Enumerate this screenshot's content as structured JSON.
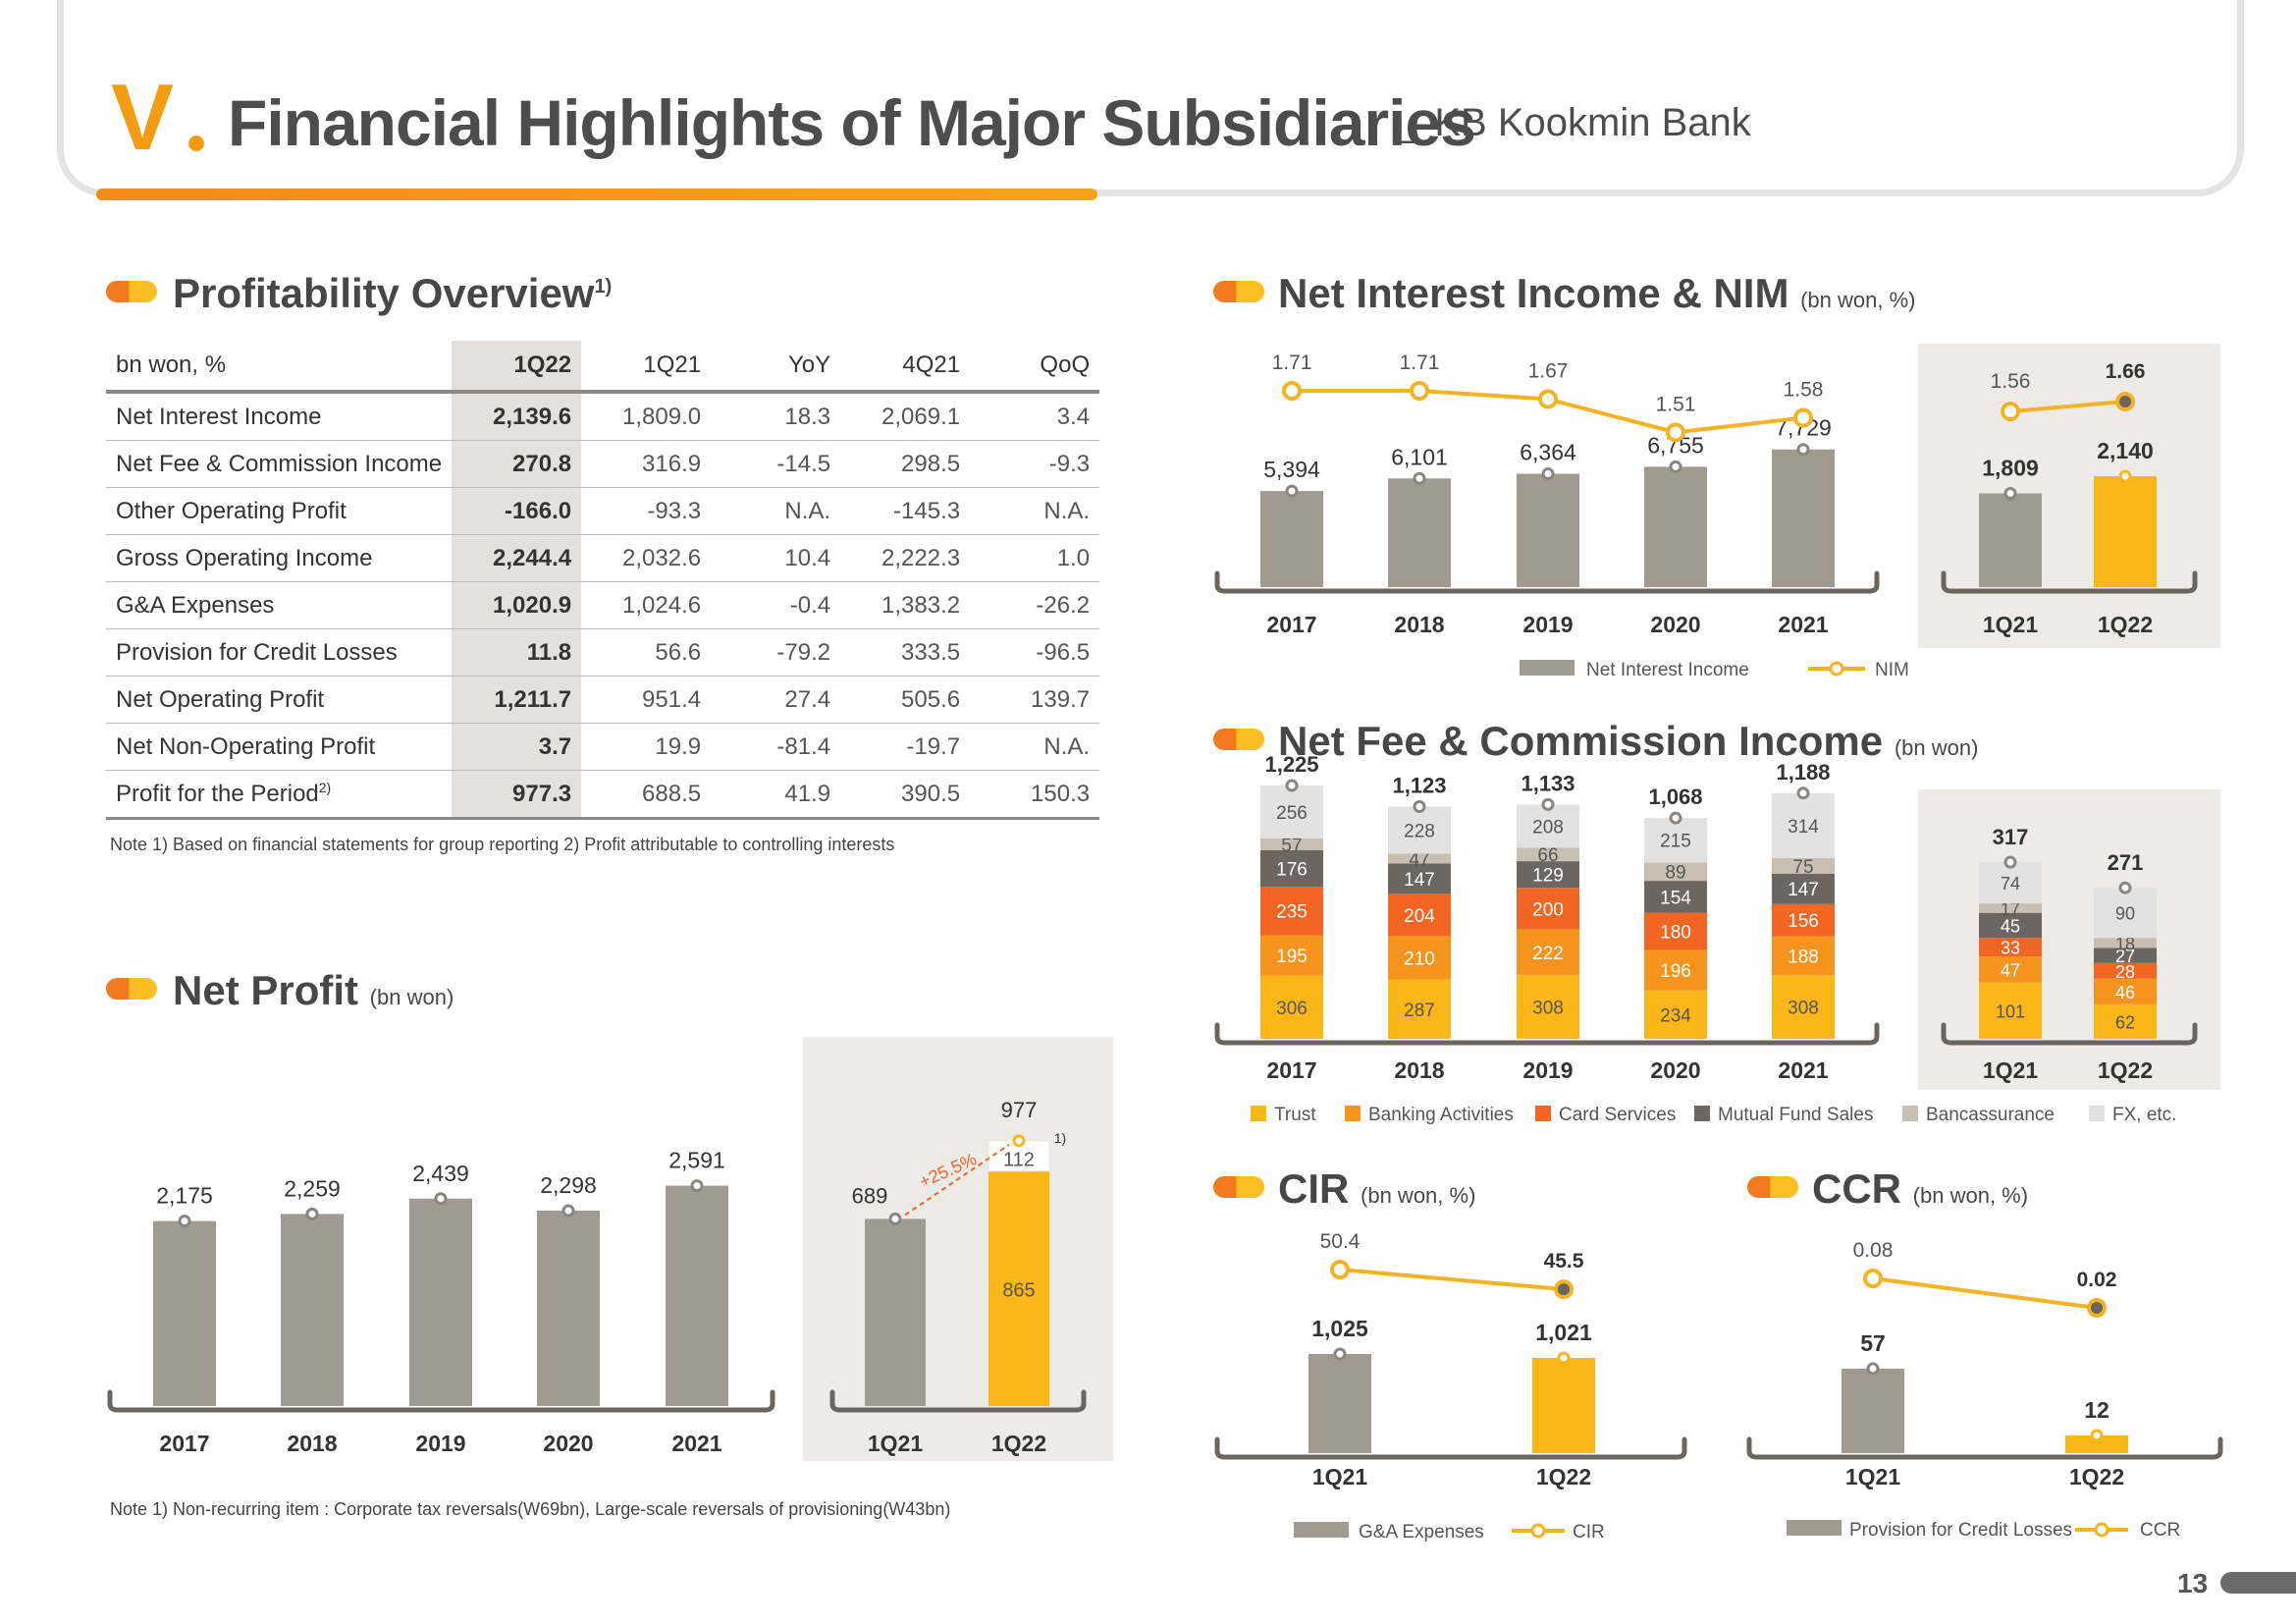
{
  "header": {
    "roman": "V",
    "title": "Financial Highlights of Major Subsidiaries",
    "subtitle": "_ KB Kookmin Bank"
  },
  "page_number": "13",
  "colors": {
    "accent_orange": "#f39c12",
    "bar_gray": "#a09a91",
    "bar_yellow": "#fbb718",
    "line_yellow": "#f5b323"
  },
  "sections": {
    "profitability": {
      "title": "Profitability Overview",
      "sup": "1)"
    },
    "net_profit": {
      "title": "Net Profit",
      "unit": "(bn won)"
    },
    "nii": {
      "title": "Net Interest Income & NIM",
      "unit": "(bn won, %)"
    },
    "fee": {
      "title": "Net Fee & Commission Income",
      "unit": "(bn won)"
    },
    "cir": {
      "title": "CIR",
      "unit": "(bn won, %)"
    },
    "ccr": {
      "title": "CCR",
      "unit": "(bn won, %)"
    }
  },
  "profitability_table": {
    "headers": [
      "bn won, %",
      "1Q22",
      "1Q21",
      "YoY",
      "4Q21",
      "QoQ"
    ],
    "rows": [
      [
        "Net Interest Income",
        "2,139.6",
        "1,809.0",
        "18.3",
        "2,069.1",
        "3.4"
      ],
      [
        "Net Fee & Commission Income",
        "270.8",
        "316.9",
        "-14.5",
        "298.5",
        "-9.3"
      ],
      [
        "Other Operating Profit",
        "-166.0",
        "-93.3",
        "N.A.",
        "-145.3",
        "N.A."
      ],
      [
        "Gross Operating Income",
        "2,244.4",
        "2,032.6",
        "10.4",
        "2,222.3",
        "1.0"
      ],
      [
        "G&A Expenses",
        "1,020.9",
        "1,024.6",
        "-0.4",
        "1,383.2",
        "-26.2"
      ],
      [
        "Provision for Credit Losses",
        "11.8",
        "56.6",
        "-79.2",
        "333.5",
        "-96.5"
      ],
      [
        "Net Operating Profit",
        "1,211.7",
        "951.4",
        "27.4",
        "505.6",
        "139.7"
      ],
      [
        "Net Non-Operating Profit",
        "3.7",
        "19.9",
        "-81.4",
        "-19.7",
        "N.A."
      ],
      [
        "Profit for the Period",
        "977.3",
        "688.5",
        "41.9",
        "390.5",
        "150.3"
      ]
    ],
    "last_row_sup": "2)",
    "note": "Note 1) Based on financial statements for group reporting  2) Profit attributable to controlling interests"
  },
  "net_profit_note": "Note 1) Non-recurring item : Corporate tax reversals(W69bn), Large-scale reversals of provisioning(W43bn)",
  "chart_data": [
    {
      "id": "net_profit_annual",
      "type": "bar",
      "categories": [
        "2017",
        "2018",
        "2019",
        "2020",
        "2021"
      ],
      "values": [
        2175,
        2259,
        2439,
        2298,
        2591
      ],
      "labels": [
        "2,175",
        "2,259",
        "2,439",
        "2,298",
        "2,591"
      ]
    },
    {
      "id": "net_profit_quarterly",
      "type": "bar",
      "categories": [
        "1Q21",
        "1Q22"
      ],
      "series": [
        {
          "values": [
            689,
            865
          ],
          "labels": [
            "689",
            "865"
          ]
        },
        {
          "values": [
            0,
            112
          ],
          "labels": [
            "",
            "112"
          ]
        }
      ],
      "totals": [
        "689",
        "977"
      ],
      "growth_label": "+25.5%",
      "note_marker": "1)"
    },
    {
      "id": "nii_annual",
      "type": "bar",
      "categories": [
        "2017",
        "2018",
        "2019",
        "2020",
        "2021"
      ],
      "series": [
        {
          "name": "Net Interest Income",
          "type": "bar",
          "values": [
            5394,
            6101,
            6364,
            6755,
            7729
          ],
          "labels": [
            "5,394",
            "6,101",
            "6,364",
            "6,755",
            "7,729"
          ]
        },
        {
          "name": "NIM",
          "type": "line",
          "values": [
            1.71,
            1.71,
            1.67,
            1.51,
            1.58
          ],
          "labels": [
            "1.71",
            "1.71",
            "1.67",
            "1.51",
            "1.58"
          ]
        }
      ]
    },
    {
      "id": "nii_quarterly",
      "type": "bar",
      "categories": [
        "1Q21",
        "1Q22"
      ],
      "series": [
        {
          "name": "Net Interest Income",
          "type": "bar",
          "values": [
            1809,
            2140
          ],
          "labels": [
            "1,809",
            "2,140"
          ]
        },
        {
          "name": "NIM",
          "type": "line",
          "values": [
            1.56,
            1.66
          ],
          "labels": [
            "1.56",
            "1.66"
          ]
        }
      ]
    },
    {
      "id": "fee_annual",
      "type": "bar",
      "stacked": true,
      "categories": [
        "2017",
        "2018",
        "2019",
        "2020",
        "2021"
      ],
      "totals": [
        "1,225",
        "1,123",
        "1,133",
        "1,068",
        "1,188"
      ],
      "series": [
        {
          "name": "Trust",
          "color": "#fbb718",
          "values": [
            306,
            287,
            308,
            234,
            308
          ]
        },
        {
          "name": "Banking Activities",
          "color": "#f7941d",
          "values": [
            195,
            210,
            222,
            196,
            188
          ]
        },
        {
          "name": "Card Services",
          "color": "#f26522",
          "values": [
            235,
            204,
            200,
            180,
            156
          ]
        },
        {
          "name": "Mutual Fund Sales",
          "color": "#6d6560",
          "values": [
            176,
            147,
            129,
            154,
            147
          ]
        },
        {
          "name": "Bancassurance",
          "color": "#c8beb2",
          "values": [
            57,
            47,
            66,
            89,
            75
          ]
        },
        {
          "name": "FX, etc.",
          "color": "#e2e2e2",
          "values": [
            256,
            228,
            208,
            215,
            314
          ]
        }
      ]
    },
    {
      "id": "fee_quarterly",
      "type": "bar",
      "stacked": true,
      "categories": [
        "1Q21",
        "1Q22"
      ],
      "totals": [
        "317",
        "271"
      ],
      "series": [
        {
          "name": "Trust",
          "values": [
            101,
            62
          ]
        },
        {
          "name": "Banking Activities",
          "values": [
            47,
            46
          ]
        },
        {
          "name": "Card Services",
          "values": [
            33,
            28
          ]
        },
        {
          "name": "Mutual Fund Sales",
          "values": [
            45,
            27
          ]
        },
        {
          "name": "Bancassurance",
          "values": [
            17,
            18
          ]
        },
        {
          "name": "FX, etc.",
          "values": [
            74,
            90
          ]
        }
      ]
    },
    {
      "id": "cir",
      "type": "bar",
      "categories": [
        "1Q21",
        "1Q22"
      ],
      "series": [
        {
          "name": "G&A Expenses",
          "type": "bar",
          "values": [
            1025,
            1021
          ],
          "labels": [
            "1,025",
            "1,021"
          ]
        },
        {
          "name": "CIR",
          "type": "line",
          "values": [
            50.4,
            45.5
          ],
          "labels": [
            "50.4",
            "45.5"
          ]
        }
      ]
    },
    {
      "id": "ccr",
      "type": "bar",
      "categories": [
        "1Q21",
        "1Q22"
      ],
      "series": [
        {
          "name": "Provision for Credit Losses",
          "type": "bar",
          "values": [
            57,
            12
          ],
          "labels": [
            "57",
            "12"
          ]
        },
        {
          "name": "CCR",
          "type": "line",
          "values": [
            0.08,
            0.02
          ],
          "labels": [
            "0.08",
            "0.02"
          ]
        }
      ]
    }
  ]
}
